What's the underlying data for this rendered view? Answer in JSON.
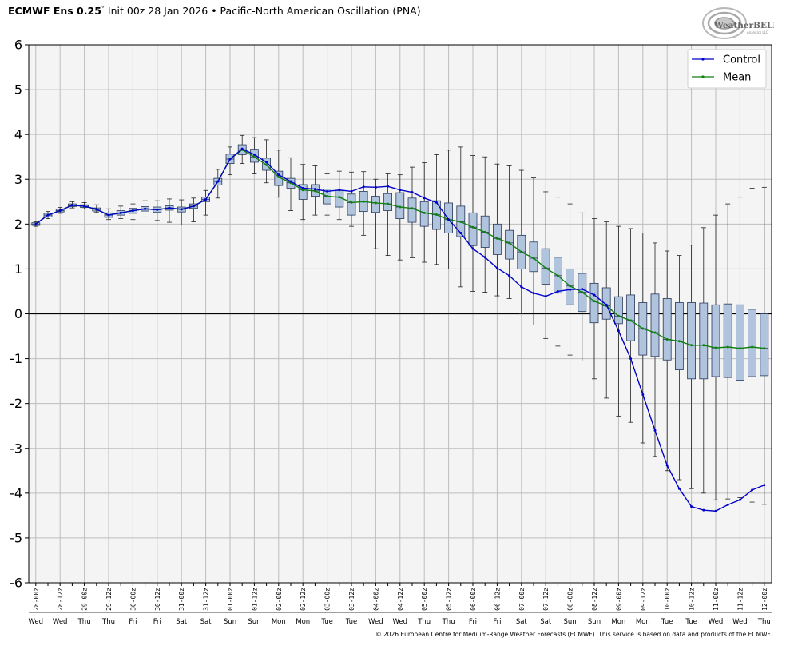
{
  "header": {
    "title_main": "ECMWF Ens 0.25",
    "degree": "°",
    "title_rest": "Init 00z 28 Jan 2026 • Pacific-North American Oscillation (PNA)"
  },
  "logo": {
    "text": "WeatherBELL",
    "subtext": "Analytics LLC"
  },
  "footer": {
    "text": "© 2026 European Centre for Medium-Range Weather Forecasts (ECMWF). This service is based on data and products of the ECMWF."
  },
  "colors": {
    "control": "#0000c8",
    "mean": "#108010",
    "box_fill": "#b0c4de",
    "box_stroke": "#2a3a5a",
    "plot_bg": "#f4f4f4",
    "grid": "#bdbdbd"
  },
  "chart_data": {
    "type": "boxplot",
    "title": "Pacific-North American Oscillation (PNA)",
    "ylim": [
      -6,
      6
    ],
    "yticks": [
      6,
      5,
      4,
      3,
      2,
      1,
      0,
      -1,
      -2,
      -3,
      -4,
      -5,
      -6
    ],
    "grid": true,
    "legend_position": "top-right",
    "legend": [
      {
        "name": "Control",
        "color": "#0000c8"
      },
      {
        "name": "Mean",
        "color": "#108010"
      }
    ],
    "x_tick_labels": [
      "28-00z",
      "28-12z",
      "29-00z",
      "29-12z",
      "30-00z",
      "30-12z",
      "31-00z",
      "31-12z",
      "01-00z",
      "01-12z",
      "02-00z",
      "02-12z",
      "03-00z",
      "03-12z",
      "04-00z",
      "04-12z",
      "05-00z",
      "05-12z",
      "06-00z",
      "06-12z",
      "07-00z",
      "07-12z",
      "08-00z",
      "08-12z",
      "09-00z",
      "09-12z",
      "10-00z",
      "10-12z",
      "11-00z",
      "11-12z",
      "12-00z"
    ],
    "x_day_labels": [
      "Wed",
      "Wed",
      "Thu",
      "Thu",
      "Fri",
      "Fri",
      "Sat",
      "Sat",
      "Sun",
      "Sun",
      "Mon",
      "Mon",
      "Tue",
      "Tue",
      "Wed",
      "Wed",
      "Thu",
      "Thu",
      "Fri",
      "Fri",
      "Sat",
      "Sat",
      "Sun",
      "Sun",
      "Mon",
      "Mon",
      "Tue",
      "Tue",
      "Wed",
      "Wed",
      "Thu"
    ],
    "steps_per_label": 2,
    "series": [
      {
        "name": "Control",
        "values": [
          2.0,
          2.2,
          2.3,
          2.42,
          2.4,
          2.33,
          2.2,
          2.25,
          2.3,
          2.34,
          2.32,
          2.36,
          2.33,
          2.4,
          2.55,
          2.95,
          3.45,
          3.68,
          3.55,
          3.38,
          3.1,
          2.95,
          2.8,
          2.78,
          2.73,
          2.76,
          2.73,
          2.83,
          2.82,
          2.84,
          2.76,
          2.71,
          2.58,
          2.48,
          2.1,
          1.8,
          1.45,
          1.26,
          1.02,
          0.85,
          0.6,
          0.46,
          0.39,
          0.5,
          0.54,
          0.55,
          0.42,
          0.2,
          -0.38,
          -1.0,
          -1.8,
          -2.6,
          -3.38,
          -3.9,
          -4.3,
          -4.38,
          -4.4,
          -4.26,
          -4.15,
          -3.93,
          -3.82
        ]
      },
      {
        "name": "Mean",
        "values": [
          2.0,
          2.2,
          2.3,
          2.42,
          2.4,
          2.33,
          2.2,
          2.25,
          2.3,
          2.34,
          2.32,
          2.36,
          2.33,
          2.4,
          2.55,
          2.95,
          3.45,
          3.66,
          3.5,
          3.32,
          3.05,
          2.92,
          2.76,
          2.74,
          2.62,
          2.6,
          2.48,
          2.5,
          2.47,
          2.45,
          2.38,
          2.35,
          2.25,
          2.21,
          2.1,
          2.05,
          1.93,
          1.82,
          1.68,
          1.58,
          1.38,
          1.24,
          1.02,
          0.85,
          0.62,
          0.48,
          0.28,
          0.18,
          -0.05,
          -0.15,
          -0.33,
          -0.42,
          -0.57,
          -0.61,
          -0.7,
          -0.7,
          -0.76,
          -0.74,
          -0.77,
          -0.74,
          -0.77
        ]
      },
      {
        "name": "Ensemble box-whisker",
        "whisker_low": [
          1.95,
          2.12,
          2.24,
          2.36,
          2.34,
          2.26,
          2.1,
          2.12,
          2.1,
          2.16,
          2.08,
          2.04,
          1.98,
          2.05,
          2.2,
          2.58,
          3.1,
          3.35,
          3.12,
          2.92,
          2.6,
          2.3,
          2.1,
          2.2,
          2.2,
          2.1,
          1.95,
          1.75,
          1.45,
          1.3,
          1.2,
          1.25,
          1.15,
          1.1,
          1.0,
          0.6,
          0.5,
          0.48,
          0.4,
          0.34,
          0.0,
          -0.25,
          -0.55,
          -0.72,
          -0.92,
          -1.05,
          -1.45,
          -1.88,
          -2.28,
          -2.42,
          -2.88,
          -3.18,
          -3.5,
          -3.7,
          -3.9,
          -4.0,
          -4.15,
          -4.13,
          -4.1,
          -4.2,
          -4.25
        ],
        "q1": [
          1.97,
          2.16,
          2.27,
          2.39,
          2.37,
          2.29,
          2.15,
          2.2,
          2.24,
          2.29,
          2.26,
          2.31,
          2.27,
          2.35,
          2.5,
          2.87,
          3.35,
          3.55,
          3.38,
          3.2,
          2.86,
          2.8,
          2.55,
          2.62,
          2.45,
          2.38,
          2.2,
          2.28,
          2.26,
          2.3,
          2.12,
          2.04,
          1.95,
          1.88,
          1.8,
          1.72,
          1.52,
          1.48,
          1.32,
          1.22,
          1.0,
          0.94,
          0.66,
          0.46,
          0.2,
          0.05,
          -0.2,
          -0.12,
          -0.22,
          -0.6,
          -0.92,
          -0.95,
          -1.03,
          -1.25,
          -1.45,
          -1.45,
          -1.4,
          -1.42,
          -1.48,
          -1.4,
          -1.38
        ],
        "median": [
          2.0,
          2.2,
          2.3,
          2.42,
          2.4,
          2.33,
          2.2,
          2.25,
          2.3,
          2.34,
          2.32,
          2.36,
          2.33,
          2.4,
          2.55,
          2.95,
          3.45,
          3.66,
          3.5,
          3.32,
          3.05,
          2.92,
          2.76,
          2.74,
          2.62,
          2.6,
          2.48,
          2.5,
          2.47,
          2.45,
          2.38,
          2.35,
          2.25,
          2.21,
          2.1,
          2.05,
          1.93,
          1.82,
          1.68,
          1.58,
          1.38,
          1.24,
          1.02,
          0.85,
          0.62,
          0.48,
          0.28,
          0.18,
          -0.05,
          -0.15,
          -0.33,
          -0.42,
          -0.57,
          -0.61,
          -0.7,
          -0.7,
          -0.76,
          -0.74,
          -0.77,
          -0.74,
          -0.77
        ],
        "q3": [
          2.03,
          2.24,
          2.33,
          2.45,
          2.43,
          2.36,
          2.25,
          2.3,
          2.35,
          2.39,
          2.38,
          2.41,
          2.38,
          2.45,
          2.6,
          3.02,
          3.56,
          3.77,
          3.67,
          3.47,
          3.18,
          3.02,
          2.88,
          2.88,
          2.78,
          2.75,
          2.67,
          2.73,
          2.62,
          2.68,
          2.7,
          2.58,
          2.5,
          2.52,
          2.47,
          2.4,
          2.25,
          2.18,
          2.0,
          1.86,
          1.75,
          1.6,
          1.45,
          1.26,
          1.0,
          0.9,
          0.68,
          0.58,
          0.38,
          0.42,
          0.25,
          0.44,
          0.34,
          0.25,
          0.25,
          0.24,
          0.2,
          0.22,
          0.2,
          0.1,
          0.0
        ],
        "whisker_high": [
          2.05,
          2.28,
          2.37,
          2.5,
          2.48,
          2.43,
          2.34,
          2.4,
          2.45,
          2.52,
          2.52,
          2.56,
          2.54,
          2.58,
          2.75,
          3.22,
          3.72,
          3.98,
          3.93,
          3.88,
          3.65,
          3.48,
          3.33,
          3.3,
          3.12,
          3.18,
          3.16,
          3.17,
          3.0,
          3.12,
          3.1,
          3.27,
          3.37,
          3.55,
          3.65,
          3.72,
          3.53,
          3.5,
          3.34,
          3.3,
          3.2,
          3.03,
          2.72,
          2.6,
          2.45,
          2.25,
          2.12,
          2.05,
          1.95,
          1.9,
          1.8,
          1.58,
          1.4,
          1.3,
          1.53,
          1.92,
          2.2,
          2.45,
          2.6,
          2.8,
          2.82
        ]
      }
    ]
  }
}
